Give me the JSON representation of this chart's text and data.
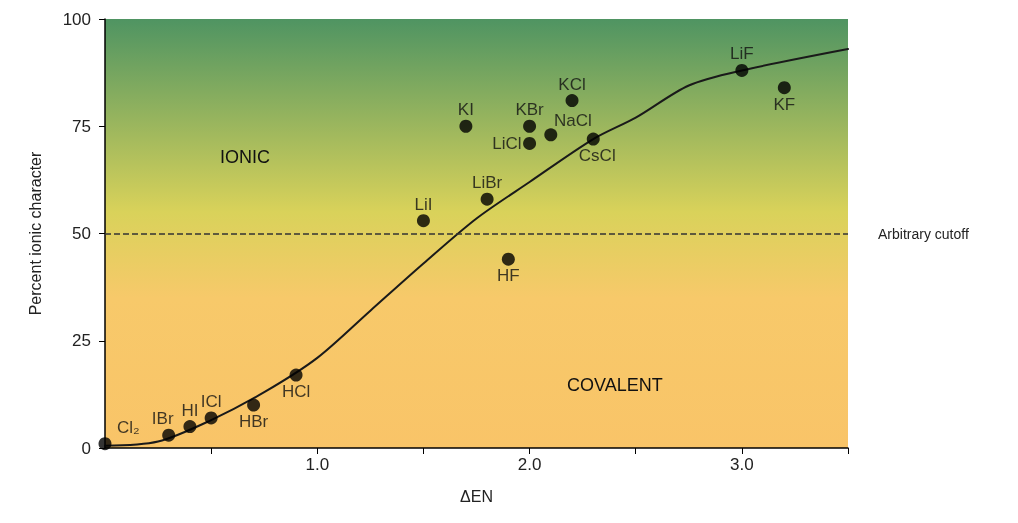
{
  "chart_data": {
    "type": "scatter",
    "xlabel": "ΔEN",
    "ylabel": "Percent ionic character",
    "xlim": [
      0,
      3.5
    ],
    "ylim": [
      0,
      100
    ],
    "xticks": [
      {
        "value": 0.5,
        "label": null
      },
      {
        "value": 1,
        "label": "1.0"
      },
      {
        "value": 1.5,
        "label": null
      },
      {
        "value": 2,
        "label": "2.0"
      },
      {
        "value": 2.5,
        "label": null
      },
      {
        "value": 3,
        "label": "3.0"
      },
      {
        "value": 3.5,
        "label": null
      }
    ],
    "yticks": [
      0,
      25,
      50,
      75,
      100
    ],
    "grid": false,
    "marker": "circle",
    "series": [
      {
        "color": "#000000",
        "x": [
          0,
          0.3,
          0.4,
          0.5,
          0.7,
          0.9,
          1.5,
          1.7,
          1.8,
          1.9,
          2.0,
          2.0,
          2.1,
          2.2,
          2.3,
          3.0,
          3.2
        ],
        "values": [
          1,
          3,
          5,
          7,
          10,
          17,
          53,
          75,
          58,
          44,
          75,
          71,
          73,
          81,
          72,
          88,
          84
        ]
      },
      {
        "type": "line",
        "color": "#1a1a1a",
        "marker": "none",
        "line_style": "solid",
        "x": [
          0,
          0.25,
          0.5,
          0.75,
          1.0,
          1.25,
          1.5,
          1.75,
          2.0,
          2.3,
          2.5,
          2.75,
          3.0,
          3.5
        ],
        "values": [
          0.5,
          1.5,
          6.5,
          13,
          21,
          32,
          43,
          53.5,
          62,
          72,
          77,
          84.5,
          88,
          93
        ]
      }
    ],
    "ref_lines": [
      {
        "axis": "y",
        "value": 50,
        "label": "Arbitrary cutoff",
        "color": "#333333",
        "line_style": "dashed"
      }
    ],
    "annotations": [
      "IONIC",
      "COVALENT",
      {
        "text": "Cl₂",
        "x": 0,
        "y": 1
      },
      {
        "text": "IBr",
        "x": 0.3,
        "y": 3
      },
      {
        "text": "HI",
        "x": 0.4,
        "y": 5
      },
      {
        "text": "ICl",
        "x": 0.5,
        "y": 7
      },
      {
        "text": "HBr",
        "x": 0.7,
        "y": 10
      },
      {
        "text": "HCl",
        "x": 0.9,
        "y": 17
      },
      {
        "text": "LiI",
        "x": 1.5,
        "y": 53
      },
      {
        "text": "KI",
        "x": 1.7,
        "y": 75
      },
      {
        "text": "LiBr",
        "x": 1.8,
        "y": 58
      },
      {
        "text": "HF",
        "x": 1.9,
        "y": 44
      },
      {
        "text": "KBr",
        "x": 2.0,
        "y": 75
      },
      {
        "text": "LiCl",
        "x": 2.0,
        "y": 71
      },
      {
        "text": "NaCl",
        "x": 2.1,
        "y": 73
      },
      {
        "text": "KCl",
        "x": 2.2,
        "y": 81
      },
      {
        "text": "CsCl",
        "x": 2.3,
        "y": 72
      },
      {
        "text": "LiF",
        "x": 3.0,
        "y": 88
      },
      {
        "text": "KF",
        "x": 3.2,
        "y": 84
      }
    ]
  }
}
